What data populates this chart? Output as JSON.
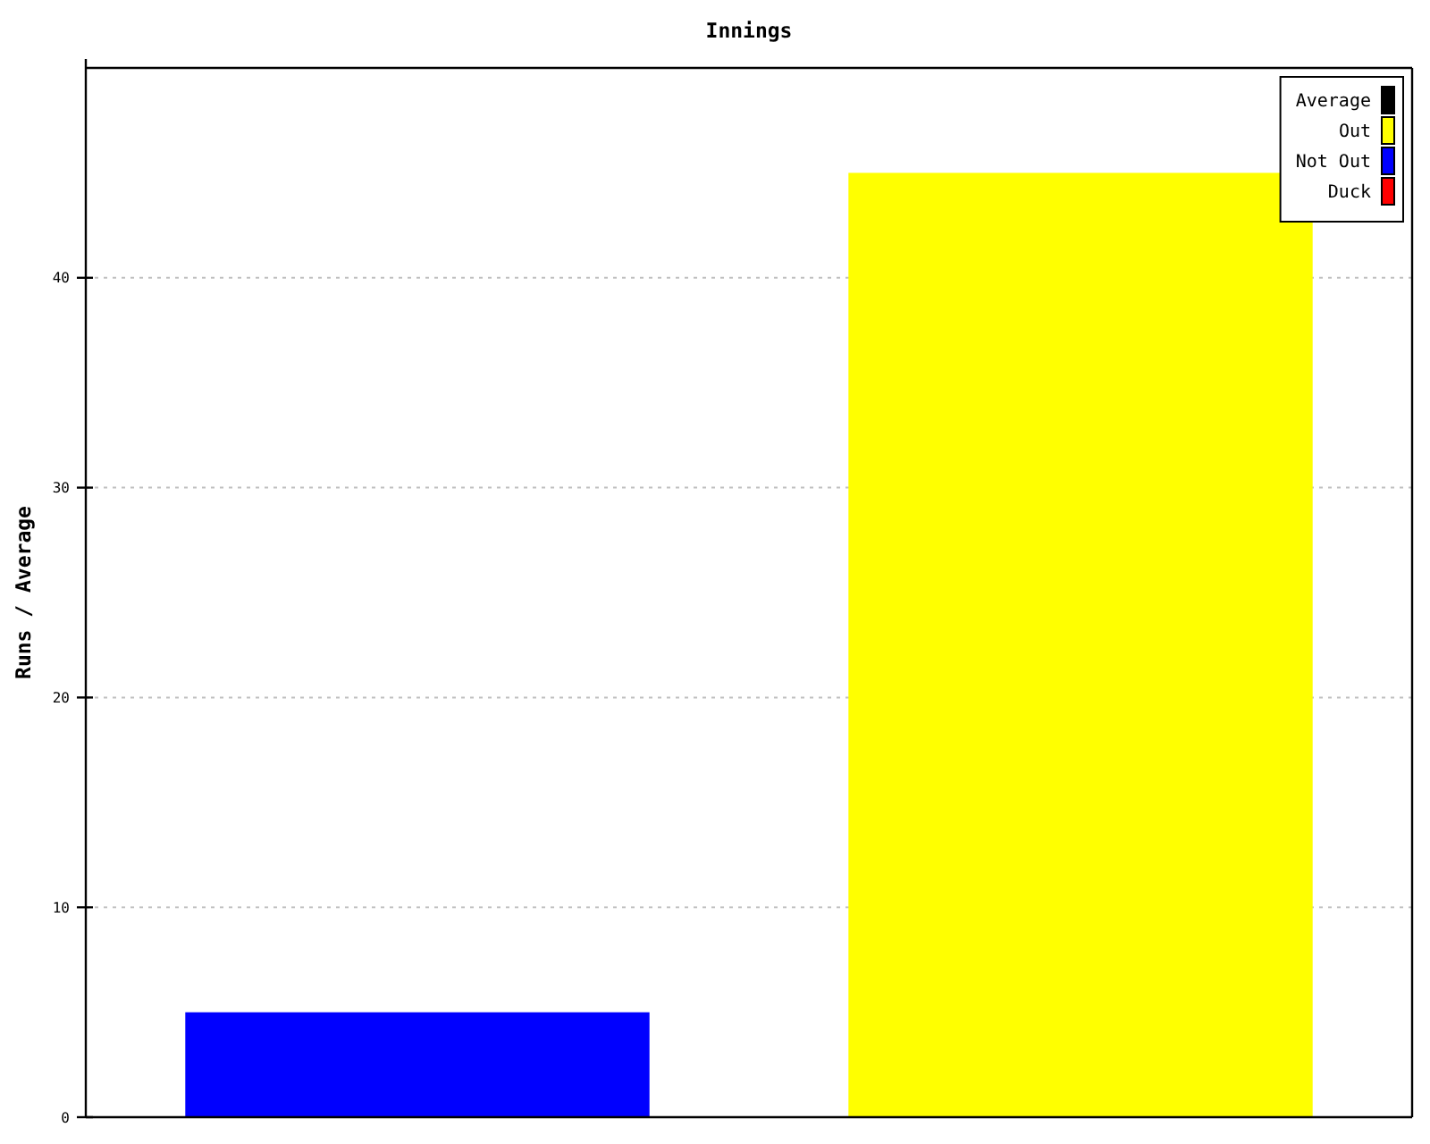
{
  "chart_data": {
    "type": "bar",
    "title": "Innings",
    "ylabel": "Runs / Average",
    "categories": [
      null,
      null
    ],
    "series": [
      {
        "name": "Average",
        "color": "#000000",
        "values": [
          null,
          null
        ]
      },
      {
        "name": "Out",
        "color": "#ffff00",
        "values": [
          null,
          45
        ]
      },
      {
        "name": "Not Out",
        "color": "#0000ff",
        "values": [
          5,
          null
        ]
      },
      {
        "name": "Duck",
        "color": "#ff0000",
        "values": [
          null,
          null
        ]
      }
    ],
    "stacked": true,
    "ylim": [
      0,
      50
    ],
    "yticks": [
      0,
      10,
      20,
      30,
      40
    ],
    "grid": "y",
    "legend": "top right"
  }
}
